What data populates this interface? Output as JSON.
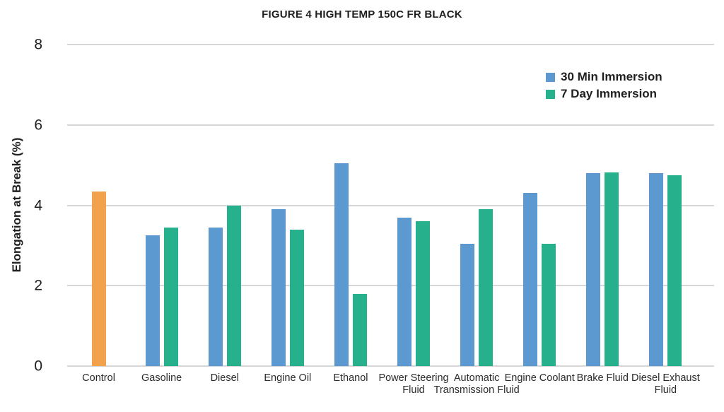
{
  "figure": {
    "title": "FIGURE 4 HIGH TEMP 150C FR BLACK",
    "ylabel": "Elongation at Break (%)"
  },
  "colors": {
    "blue": "#5B99D0",
    "green": "#26B18C",
    "orange": "#F2A24C",
    "gridline": "#D6D6D6",
    "text": "#1F1F1F"
  },
  "legend": {
    "items": [
      {
        "label": "30 Min Immersion",
        "color": "#5B99D0"
      },
      {
        "label": "7 Day Immersion",
        "color": "#26B18C"
      }
    ]
  },
  "chart_data": {
    "type": "bar",
    "title": "FIGURE 4 HIGH TEMP 150C FR BLACK",
    "xlabel": "",
    "ylabel": "Elongation at Break (%)",
    "ylim": [
      0,
      8
    ],
    "yticks": [
      0,
      2,
      4,
      6,
      8
    ],
    "grid": true,
    "legend_position": "top-right",
    "categories": [
      "Control",
      "Gasoline",
      "Diesel",
      "Engine Oil",
      "Ethanol",
      "Power Steering Fluid",
      "Automatic Transmission Fluid",
      "Engine Coolant",
      "Brake Fluid",
      "Diesel Exhaust Fluid"
    ],
    "series": [
      {
        "name": "30 Min Immersion",
        "color": "#5B99D0",
        "values": [
          4.35,
          3.25,
          3.45,
          3.9,
          5.05,
          3.7,
          3.05,
          4.3,
          4.8,
          4.8
        ]
      },
      {
        "name": "7 Day Immersion",
        "color": "#26B18C",
        "values": [
          null,
          3.45,
          4.0,
          3.4,
          1.8,
          3.6,
          3.9,
          3.05,
          4.82,
          4.75
        ]
      }
    ],
    "color_overrides": {
      "0": {
        "0": "#F2A24C"
      }
    }
  }
}
